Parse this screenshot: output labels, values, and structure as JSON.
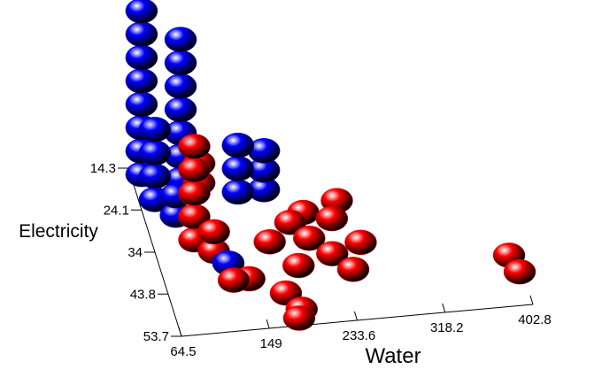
{
  "chart_data": {
    "type": "scatter3d",
    "x_label": "Water",
    "y_label": "Electricity",
    "xlim": [
      64.5,
      402.8
    ],
    "xticks": [
      64.5,
      149.0,
      233.6,
      318.2,
      402.8
    ],
    "ylim": [
      53.7,
      14.3
    ],
    "yticks": [
      14.3,
      24.1,
      34.0,
      43.8,
      53.7
    ],
    "zlim": [
      0,
      100
    ],
    "series": [
      {
        "color": "#0000ff",
        "x": [
          75,
          75,
          75,
          75,
          75,
          75,
          75,
          75,
          110,
          110,
          110,
          110,
          110,
          110,
          110,
          80,
          80,
          80,
          80,
          160,
          160,
          160,
          185,
          185,
          185,
          130,
          95,
          95
        ],
        "y": [
          16,
          16,
          16,
          16,
          16,
          16,
          16,
          16,
          18,
          18,
          18,
          18,
          18,
          18,
          18,
          22,
          22,
          22,
          22,
          22,
          22,
          22,
          22,
          22,
          22,
          38,
          26,
          26
        ],
        "z": [
          0,
          12,
          24,
          36,
          48,
          60,
          72,
          84,
          0,
          12,
          24,
          36,
          48,
          60,
          72,
          0,
          12,
          24,
          36,
          0,
          12,
          24,
          0,
          10,
          20,
          0,
          0,
          10
        ]
      },
      {
        "color": "#ff0000",
        "x": [
          105,
          105,
          105,
          105,
          105,
          120,
          120,
          145,
          130,
          175,
          185,
          180,
          213,
          200,
          240,
          230,
          260,
          195,
          175,
          250,
          215,
          245,
          395,
          400,
          115,
          115
        ],
        "y": [
          32,
          32,
          32,
          32,
          32,
          35,
          35,
          42,
          42,
          46,
          50,
          52,
          34,
          30,
          30,
          38,
          36,
          40,
          34,
          26,
          28,
          42,
          42,
          46,
          28,
          28
        ],
        "z": [
          0,
          12,
          24,
          36,
          48,
          0,
          10,
          0,
          0,
          0,
          0,
          0,
          0,
          0,
          0,
          0,
          0,
          0,
          0,
          0,
          0,
          0,
          0,
          0,
          20,
          30
        ]
      }
    ]
  }
}
